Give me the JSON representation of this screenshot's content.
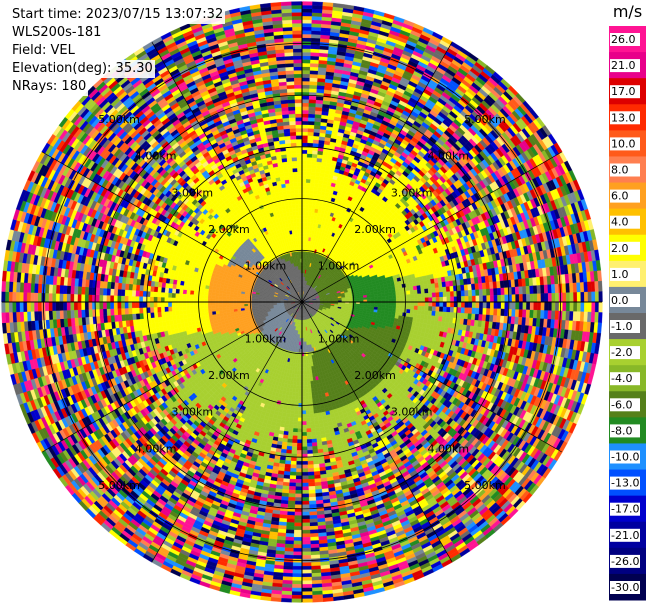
{
  "header": {
    "start_time": "Start time: 2023/07/15 13:07:32",
    "instrument": "WLS200s-181",
    "field": "Field: VEL",
    "elevation": "Elevation(deg): 35.30",
    "nrays": "NRays: 180"
  },
  "chart_data": {
    "type": "heatmap",
    "projection": "polar (PPI)",
    "field": "VEL",
    "units": "m/s",
    "nrays": 180,
    "elevation_deg": 35.3,
    "range_rings_km": [
      1.0,
      2.0,
      3.0,
      4.0,
      5.0
    ],
    "ring_labels": [
      "1.00km",
      "2.00km",
      "3.00km",
      "4.00km",
      "5.00km"
    ],
    "colorbar": {
      "title": "m/s",
      "min": -30.0,
      "max": 30.0,
      "tick_labels": [
        "26.0",
        "21.0",
        "17.0",
        "13.0",
        "10.0",
        "8.0",
        "6.0",
        "4.0",
        "2.0",
        "1.0",
        "0.0",
        "-1.0",
        "-2.0",
        "-4.0",
        "-6.0",
        "-8.0",
        "-10.0",
        "-13.0",
        "-17.0",
        "-21.0",
        "-26.0",
        "-30.0"
      ],
      "colors": [
        "#ff1493",
        "#e8008a",
        "#dd0000",
        "#ff2a00",
        "#ff5a1a",
        "#ff7f50",
        "#ffa020",
        "#ffc000",
        "#ffff00",
        "#fff070",
        "#778899",
        "#696969",
        "#a8d030",
        "#88b828",
        "#55801a",
        "#228b22",
        "#1e90ff",
        "#0050ff",
        "#0000cd",
        "#0000a0",
        "#000080",
        "#000050"
      ]
    }
  }
}
